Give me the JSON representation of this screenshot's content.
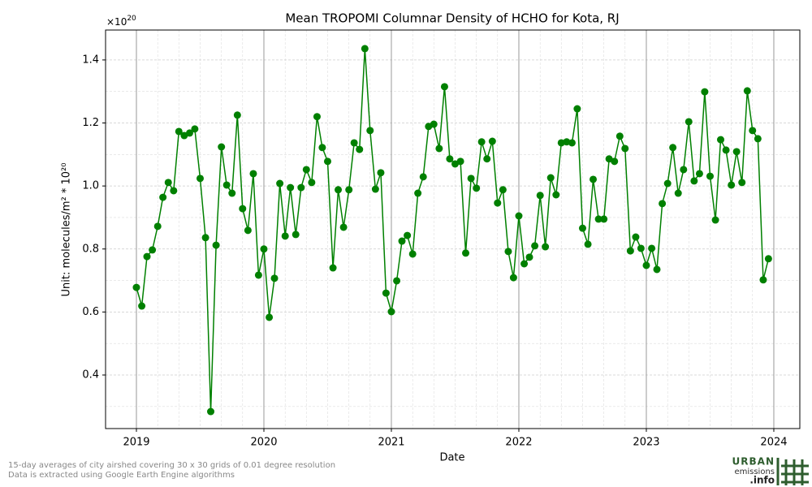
{
  "chart_data": {
    "type": "scatterline",
    "title": "Mean TROPOMI Columnar Density of HCHO for Kota, RJ",
    "xlabel": "Date",
    "ylabel": "Unit: molecules/m² * 10²⁰",
    "y_multiplier": {
      "base": "×10",
      "exponent": "20"
    },
    "color": "#008000",
    "x": [
      2019,
      2019.042,
      2019.083,
      2019.125,
      2019.167,
      2019.208,
      2019.25,
      2019.292,
      2019.333,
      2019.375,
      2019.417,
      2019.458,
      2019.5,
      2019.542,
      2019.583,
      2019.625,
      2019.667,
      2019.708,
      2019.75,
      2019.792,
      2019.833,
      2019.875,
      2019.917,
      2019.958,
      2020,
      2020.042,
      2020.083,
      2020.125,
      2020.167,
      2020.208,
      2020.25,
      2020.292,
      2020.333,
      2020.375,
      2020.417,
      2020.458,
      2020.5,
      2020.542,
      2020.583,
      2020.625,
      2020.667,
      2020.708,
      2020.75,
      2020.792,
      2020.833,
      2020.875,
      2020.917,
      2020.958,
      2021,
      2021.042,
      2021.083,
      2021.125,
      2021.167,
      2021.208,
      2021.25,
      2021.292,
      2021.333,
      2021.375,
      2021.417,
      2021.458,
      2021.5,
      2021.542,
      2021.583,
      2021.625,
      2021.667,
      2021.708,
      2021.75,
      2021.792,
      2021.833,
      2021.875,
      2021.917,
      2021.958,
      2022,
      2022.042,
      2022.083,
      2022.125,
      2022.167,
      2022.208,
      2022.25,
      2022.292,
      2022.333,
      2022.375,
      2022.417,
      2022.458,
      2022.5,
      2022.542,
      2022.583,
      2022.625,
      2022.667,
      2022.708,
      2022.75,
      2022.792,
      2022.833,
      2022.875,
      2022.917,
      2022.958,
      2023,
      2023.042,
      2023.083,
      2023.125,
      2023.167,
      2023.208,
      2023.25,
      2023.292,
      2023.333,
      2023.375,
      2023.417,
      2023.458,
      2023.5,
      2023.542,
      2023.583,
      2023.625,
      2023.667,
      2023.708,
      2023.75,
      2023.792,
      2023.833,
      2023.875,
      2023.917,
      2023.958
    ],
    "values": [
      0.678,
      0.619,
      0.776,
      0.797,
      0.872,
      0.964,
      1.011,
      0.985,
      1.173,
      1.16,
      1.168,
      1.181,
      1.024,
      0.836,
      0.284,
      0.812,
      1.124,
      1.003,
      0.977,
      1.225,
      0.928,
      0.859,
      1.039,
      0.717,
      0.8,
      0.583,
      0.707,
      1.008,
      0.841,
      0.995,
      0.846,
      0.995,
      1.052,
      1.011,
      1.22,
      1.122,
      1.078,
      0.74,
      0.988,
      0.869,
      0.988,
      1.137,
      1.116,
      1.436,
      1.176,
      0.99,
      1.042,
      0.66,
      0.601,
      0.699,
      0.825,
      0.843,
      0.784,
      0.977,
      1.029,
      1.189,
      1.196,
      1.119,
      1.315,
      1.086,
      1.07,
      1.078,
      0.787,
      1.024,
      0.993,
      1.14,
      1.086,
      1.142,
      0.946,
      0.988,
      0.792,
      0.709,
      0.905,
      0.753,
      0.774,
      0.81,
      0.97,
      0.807,
      1.026,
      0.972,
      1.137,
      1.14,
      1.137,
      1.245,
      0.866,
      0.815,
      1.021,
      0.895,
      0.895,
      1.086,
      1.078,
      1.158,
      1.119,
      0.794,
      0.838,
      0.802,
      0.748,
      0.802,
      0.735,
      0.944,
      1.008,
      1.122,
      0.977,
      1.052,
      1.204,
      1.016,
      1.039,
      1.299,
      1.031,
      0.892,
      1.147,
      1.114,
      1.003,
      1.109,
      1.011,
      1.302,
      1.176,
      1.15,
      0.702,
      0.769
    ],
    "xlim": [
      2018.758,
      2024.204
    ],
    "ylim": [
      0.23,
      1.495
    ],
    "xticks": [
      2019,
      2020,
      2021,
      2022,
      2023,
      2024
    ],
    "yticks": [
      0.4,
      0.6,
      0.8,
      {
        "value": 1,
        "label": "1.0"
      },
      1.2,
      1.4
    ],
    "x_minor_ticks": [
      2019.167,
      2019.333,
      2019.5,
      2019.667,
      2019.833,
      2020.167,
      2020.333,
      2020.5,
      2020.667,
      2020.833,
      2021.167,
      2021.333,
      2021.5,
      2021.667,
      2021.833,
      2022.167,
      2022.333,
      2022.5,
      2022.667,
      2022.833,
      2023.167,
      2023.333,
      2023.5,
      2023.667,
      2023.833
    ],
    "y_minor_ticks": [
      0.3,
      0.5,
      0.7,
      0.9,
      1.1,
      1.3
    ],
    "grid": true
  },
  "footer": {
    "notes": [
      "15-day averages of city airshed covering 30 x 30 grids of 0.01 degree resolution",
      "Data is extracted using Google Earth Engine algorithms"
    ],
    "logo": {
      "line1": "URBAN",
      "line2": "emissions",
      "line3": ".info"
    }
  }
}
